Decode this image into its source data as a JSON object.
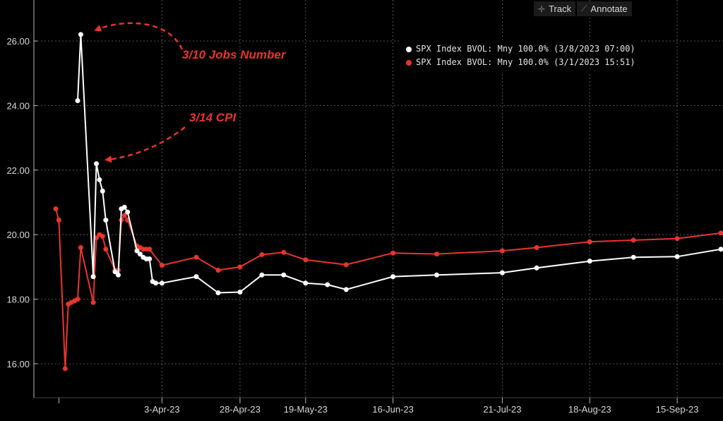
{
  "toolbar": {
    "track_label": "Track",
    "track_icon": "crosshair-icon",
    "annotate_label": "Annotate",
    "annotate_icon": "pencil-icon"
  },
  "annotations": {
    "jobs": "3/10 Jobs Number",
    "cpi": "3/14 CPI",
    "color": "#e8352b"
  },
  "chart_data": {
    "type": "line",
    "title": "",
    "xlabel": "",
    "ylabel": "",
    "ylim": [
      15.2,
      26.9
    ],
    "yticks": [
      "16.00",
      "18.00",
      "20.00",
      "22.00",
      "24.00",
      "26.00"
    ],
    "xticks": [
      {
        "label": "",
        "date": "2023-03-01"
      },
      {
        "label": "3-Apr-23",
        "date": "2023-04-03"
      },
      {
        "label": "28-Apr-23",
        "date": "2023-04-28"
      },
      {
        "label": "19-May-23",
        "date": "2023-05-19"
      },
      {
        "label": "16-Jun-23",
        "date": "2023-06-16"
      },
      {
        "label": "21-Jul-23",
        "date": "2023-07-21"
      },
      {
        "label": "18-Aug-23",
        "date": "2023-08-18"
      },
      {
        "label": "15-Sep-23",
        "date": "2023-09-15"
      }
    ],
    "xlim": [
      "2023-02-28",
      "2023-09-29"
    ],
    "grid": true,
    "legend_position": "top-right",
    "series": [
      {
        "name": "SPX Index BVOL: Mny 100.0% (3/8/2023 07:00)",
        "color": "#ffffff",
        "points": [
          [
            "2023-03-07",
            24.15
          ],
          [
            "2023-03-08",
            26.2
          ],
          [
            "2023-03-12",
            18.7
          ],
          [
            "2023-03-13",
            22.2
          ],
          [
            "2023-03-14",
            21.7
          ],
          [
            "2023-03-15",
            21.35
          ],
          [
            "2023-03-16",
            20.45
          ],
          [
            "2023-03-19",
            18.85
          ],
          [
            "2023-03-20",
            18.75
          ],
          [
            "2023-03-21",
            20.8
          ],
          [
            "2023-03-22",
            20.85
          ],
          [
            "2023-03-23",
            20.7
          ],
          [
            "2023-03-26",
            19.5
          ],
          [
            "2023-03-27",
            19.4
          ],
          [
            "2023-03-28",
            19.3
          ],
          [
            "2023-03-29",
            19.25
          ],
          [
            "2023-03-30",
            19.25
          ],
          [
            "2023-03-31",
            18.55
          ],
          [
            "2023-04-01",
            18.5
          ],
          [
            "2023-04-03",
            18.5
          ],
          [
            "2023-04-14",
            18.7
          ],
          [
            "2023-04-21",
            18.2
          ],
          [
            "2023-04-28",
            18.22
          ],
          [
            "2023-05-05",
            18.75
          ],
          [
            "2023-05-12",
            18.75
          ],
          [
            "2023-05-19",
            18.5
          ],
          [
            "2023-05-26",
            18.45
          ],
          [
            "2023-06-01",
            18.3
          ],
          [
            "2023-06-16",
            18.7
          ],
          [
            "2023-06-30",
            18.75
          ],
          [
            "2023-07-21",
            18.82
          ],
          [
            "2023-08-01",
            18.97
          ],
          [
            "2023-08-18",
            19.18
          ],
          [
            "2023-09-01",
            19.3
          ],
          [
            "2023-09-15",
            19.32
          ],
          [
            "2023-09-29",
            19.55
          ]
        ]
      },
      {
        "name": "SPX Index BVOL: Mny 100.0% (3/1/2023 15:51)",
        "color": "#e8352b",
        "points": [
          [
            "2023-02-28",
            20.8
          ],
          [
            "2023-03-01",
            20.45
          ],
          [
            "2023-03-03",
            15.85
          ],
          [
            "2023-03-04",
            17.85
          ],
          [
            "2023-03-05",
            17.9
          ],
          [
            "2023-03-06",
            17.95
          ],
          [
            "2023-03-07",
            18.0
          ],
          [
            "2023-03-08",
            19.6
          ],
          [
            "2023-03-12",
            17.9
          ],
          [
            "2023-03-13",
            19.9
          ],
          [
            "2023-03-14",
            20.0
          ],
          [
            "2023-03-15",
            19.95
          ],
          [
            "2023-03-16",
            19.55
          ],
          [
            "2023-03-19",
            18.9
          ],
          [
            "2023-03-20",
            18.9
          ],
          [
            "2023-03-21",
            20.45
          ],
          [
            "2023-03-22",
            20.6
          ],
          [
            "2023-03-23",
            20.45
          ],
          [
            "2023-03-26",
            19.65
          ],
          [
            "2023-03-27",
            19.6
          ],
          [
            "2023-03-28",
            19.55
          ],
          [
            "2023-03-29",
            19.55
          ],
          [
            "2023-03-30",
            19.55
          ],
          [
            "2023-04-03",
            19.05
          ],
          [
            "2023-04-14",
            19.3
          ],
          [
            "2023-04-21",
            18.9
          ],
          [
            "2023-04-28",
            19.0
          ],
          [
            "2023-05-05",
            19.38
          ],
          [
            "2023-05-12",
            19.45
          ],
          [
            "2023-05-19",
            19.22
          ],
          [
            "2023-06-01",
            19.07
          ],
          [
            "2023-06-16",
            19.43
          ],
          [
            "2023-06-30",
            19.4
          ],
          [
            "2023-07-21",
            19.5
          ],
          [
            "2023-08-01",
            19.6
          ],
          [
            "2023-08-18",
            19.78
          ],
          [
            "2023-09-01",
            19.83
          ],
          [
            "2023-09-15",
            19.88
          ],
          [
            "2023-09-29",
            20.05
          ]
        ]
      }
    ]
  }
}
